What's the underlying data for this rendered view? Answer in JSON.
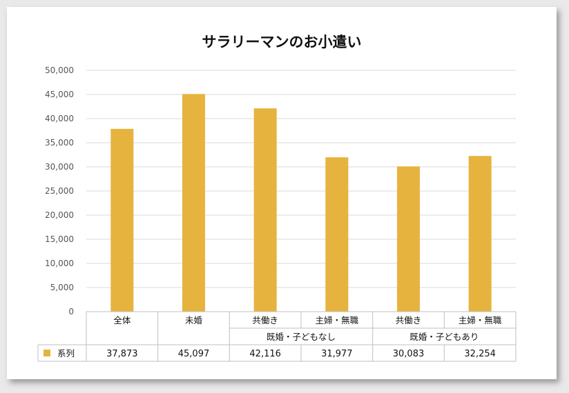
{
  "chart_data": {
    "type": "bar",
    "title": "サラリーマンのお小遣い",
    "categories": [
      "全体",
      "未婚",
      "共働き",
      "主婦・無職",
      "共働き",
      "主婦・無職"
    ],
    "groups": [
      {
        "label": "既婚・子どもなし",
        "from": 2,
        "to": 3
      },
      {
        "label": "既婚・子どもあり",
        "from": 4,
        "to": 5
      }
    ],
    "series": [
      {
        "name": "系列",
        "values": [
          37873,
          45097,
          42116,
          31977,
          30083,
          32254
        ],
        "color": "#e6b33e"
      }
    ],
    "value_labels": [
      "37,873",
      "45,097",
      "42,116",
      "31,977",
      "30,083",
      "32,254"
    ],
    "yticks": [
      "0",
      "5,000",
      "10,000",
      "15,000",
      "20,000",
      "25,000",
      "30,000",
      "35,000",
      "40,000",
      "45,000",
      "50,000"
    ],
    "ylim": [
      0,
      50000
    ],
    "grid": true,
    "legend": "data-table"
  },
  "colors": {
    "bar": "#e6b33e",
    "grid": "#d9d9d9",
    "table_border": "#bfbfbf"
  }
}
